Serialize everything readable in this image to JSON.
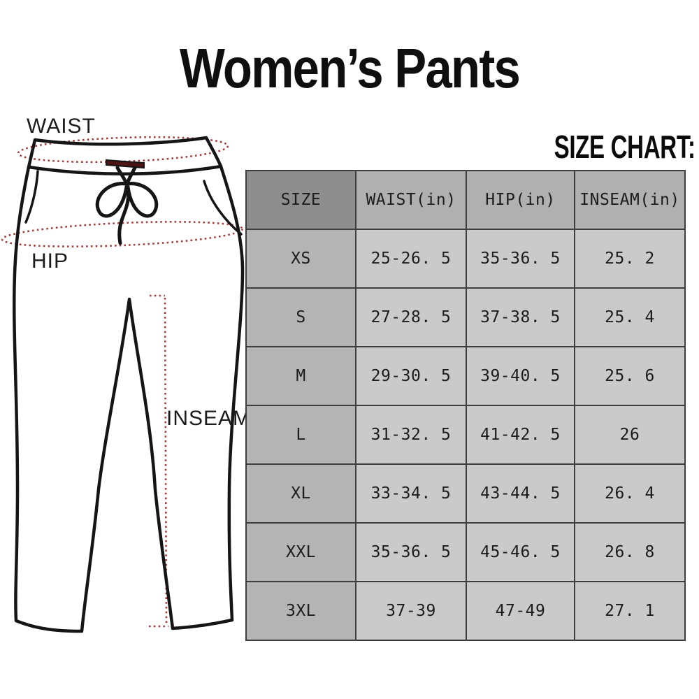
{
  "title": "Women’s Pants",
  "heading": {
    "size_chart": "SIZE CHART:"
  },
  "diagram": {
    "labels": {
      "waist": "WAIST",
      "hip": "HIP",
      "inseam": "INSEAM"
    }
  },
  "colors": {
    "ink": "#151515",
    "measure_red": "#a43e3e",
    "drawstring_maroon": "#4e1515",
    "table_border": "#3d3d3d",
    "header_dark_gray": "#8e8e8e",
    "header_gray": "#b0b0b0",
    "size_col_gray": "#b4b4b4",
    "cell_gray": "#cacaca"
  },
  "chart_data": {
    "type": "table",
    "title": "SIZE CHART:",
    "columns": [
      "SIZE",
      "WAIST(in)",
      "HIP(in)",
      "INSEAM(in)"
    ],
    "rows": [
      [
        "XS",
        "25-26. 5",
        "35-36. 5",
        "25. 2"
      ],
      [
        "S",
        "27-28. 5",
        "37-38. 5",
        "25. 4"
      ],
      [
        "M",
        "29-30. 5",
        "39-40. 5",
        "25. 6"
      ],
      [
        "L",
        "31-32. 5",
        "41-42. 5",
        "26"
      ],
      [
        "XL",
        "33-34. 5",
        "43-44. 5",
        "26. 4"
      ],
      [
        "XXL",
        "35-36. 5",
        "45-46. 5",
        "26. 8"
      ],
      [
        "3XL",
        "37-39",
        "47-49",
        "27. 1"
      ]
    ]
  }
}
